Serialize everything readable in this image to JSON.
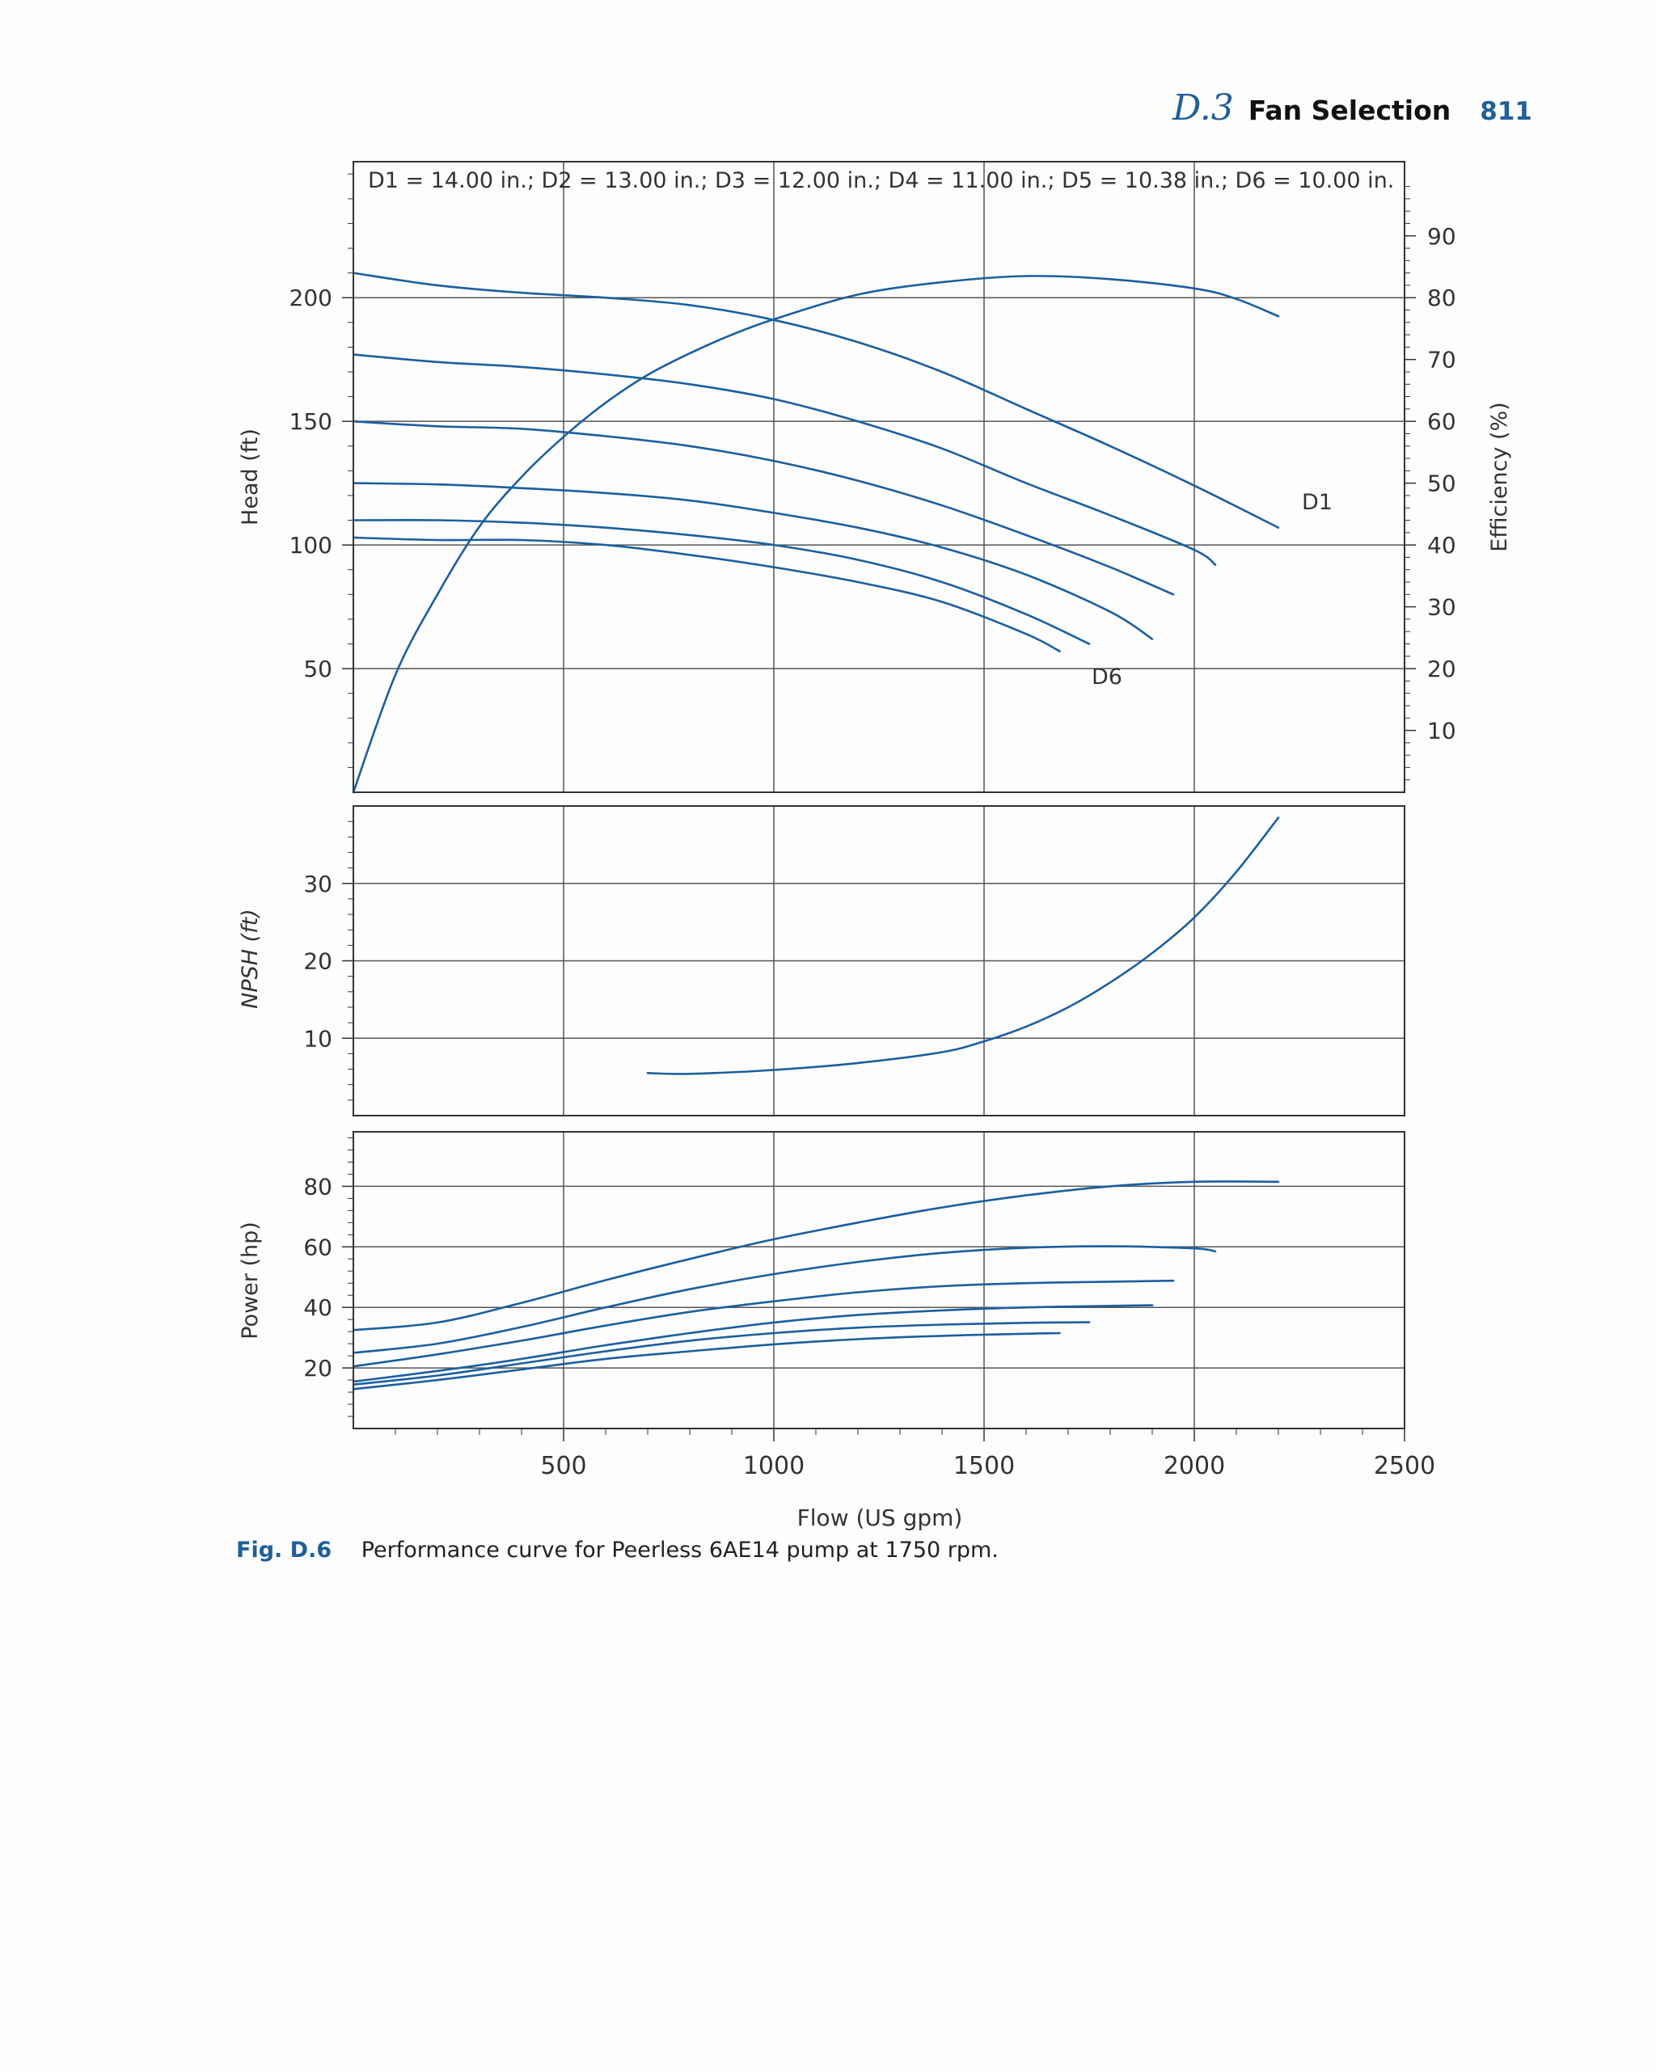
{
  "header": {
    "section_number": "D.3",
    "section_title": "Fan Selection",
    "page_number": "811"
  },
  "caption": {
    "label": "Fig. D.6",
    "text": "Performance curve for Peerless 6AE14 pump at 1750 rpm."
  },
  "colors": {
    "curve": "#1b5fa0",
    "grid": "#555555",
    "frame": "#333333"
  },
  "chart_data": [
    {
      "type": "line",
      "name": "head-efficiency",
      "title": "D1 = 14.00 in.; D2 = 13.00 in.; D3 = 12.00 in.; D4 = 11.00 in.; D5 = 10.38 in.; D6 = 10.00 in.",
      "xlabel": "Flow (US gpm)",
      "ylabel": "Head (ft)",
      "y2label": "Efficiency (%)",
      "xlim": [
        0,
        2500
      ],
      "ylim": [
        0,
        255
      ],
      "y2lim": [
        0,
        102
      ],
      "xticks": [
        500,
        1000,
        1500,
        2000
      ],
      "yticks": [
        50,
        100,
        150,
        200
      ],
      "y2ticks": [
        10,
        20,
        30,
        40,
        50,
        60,
        70,
        80,
        90
      ],
      "grid": true,
      "annotations": [
        {
          "text": "D1",
          "x": 2260,
          "y": 118
        },
        {
          "text": "D6",
          "x": 1750,
          "y": 50
        }
      ],
      "series": [
        {
          "name": "D1",
          "x": [
            0,
            200,
            400,
            600,
            800,
            1000,
            1200,
            1400,
            1600,
            1800,
            2000,
            2200
          ],
          "y": [
            210,
            205,
            202,
            200,
            197,
            191,
            182,
            170,
            155,
            140,
            124,
            107
          ]
        },
        {
          "name": "D2",
          "x": [
            0,
            200,
            400,
            600,
            800,
            1000,
            1200,
            1400,
            1600,
            1800,
            2000,
            2050
          ],
          "y": [
            177,
            174,
            172,
            169,
            165,
            159,
            150,
            139,
            125,
            112,
            98,
            92
          ]
        },
        {
          "name": "D3",
          "x": [
            0,
            200,
            400,
            600,
            800,
            1000,
            1200,
            1400,
            1600,
            1800,
            1950
          ],
          "y": [
            150,
            148,
            147,
            144,
            140,
            134,
            126,
            116,
            104,
            91,
            80
          ]
        },
        {
          "name": "D4",
          "x": [
            0,
            200,
            400,
            600,
            800,
            1000,
            1200,
            1400,
            1600,
            1800,
            1900
          ],
          "y": [
            125,
            124.5,
            123,
            121,
            118,
            113,
            107,
            99,
            88,
            73,
            62
          ]
        },
        {
          "name": "D5",
          "x": [
            0,
            200,
            400,
            600,
            800,
            1000,
            1200,
            1400,
            1600,
            1750
          ],
          "y": [
            110,
            110,
            109,
            107,
            104,
            100,
            94,
            85,
            72,
            60
          ]
        },
        {
          "name": "D6",
          "x": [
            0,
            200,
            400,
            600,
            800,
            1000,
            1200,
            1400,
            1600,
            1680
          ],
          "y": [
            103,
            102,
            102,
            100,
            96,
            91,
            85,
            77,
            64,
            57
          ]
        },
        {
          "name": "Efficiency",
          "axis": "y2",
          "x": [
            0,
            100,
            200,
            300,
            400,
            500,
            600,
            700,
            800,
            900,
            1000,
            1200,
            1400,
            1600,
            1800,
            2000,
            2100,
            2200
          ],
          "y": [
            0,
            19,
            32,
            43,
            51,
            57.5,
            63,
            67.5,
            71,
            74,
            76.5,
            80.5,
            82.5,
            83.5,
            83,
            81.5,
            79.8,
            77
          ]
        }
      ]
    },
    {
      "type": "line",
      "name": "npsh",
      "ylabel": "NPSH (ft)",
      "xlim": [
        0,
        2500
      ],
      "ylim": [
        0,
        40
      ],
      "yticks": [
        10,
        20,
        30
      ],
      "grid": true,
      "series": [
        {
          "name": "NPSH",
          "x": [
            700,
            800,
            1000,
            1200,
            1400,
            1500,
            1600,
            1700,
            1800,
            1900,
            2000,
            2100,
            2200
          ],
          "y": [
            5.5,
            5.4,
            5.9,
            6.8,
            8.2,
            9.6,
            11.5,
            14,
            17.2,
            21,
            25.6,
            31.5,
            38.5
          ]
        }
      ]
    },
    {
      "type": "line",
      "name": "power",
      "xlabel": "Flow (US gpm)",
      "ylabel": "Power (hp)",
      "xlim": [
        0,
        2500
      ],
      "ylim": [
        0,
        98
      ],
      "xticks": [
        500,
        1000,
        1500,
        2000,
        2500
      ],
      "yticks": [
        20,
        40,
        60,
        80
      ],
      "grid": true,
      "series": [
        {
          "name": "D1",
          "x": [
            0,
            200,
            400,
            600,
            800,
            1000,
            1200,
            1400,
            1600,
            1800,
            2000,
            2200
          ],
          "y": [
            32.5,
            35,
            41.5,
            49,
            56,
            62.5,
            68,
            73,
            77,
            80,
            81.5,
            81.5
          ]
        },
        {
          "name": "D2",
          "x": [
            0,
            200,
            400,
            600,
            800,
            1000,
            1200,
            1400,
            1600,
            1800,
            2000,
            2050
          ],
          "y": [
            25,
            28,
            33.5,
            40,
            46,
            51,
            55,
            58,
            59.7,
            60.2,
            59.5,
            58.5
          ]
        },
        {
          "name": "D3",
          "x": [
            0,
            200,
            400,
            600,
            800,
            1000,
            1200,
            1400,
            1600,
            1800,
            1950
          ],
          "y": [
            20.5,
            24.5,
            29,
            34,
            38.5,
            42,
            45,
            47,
            48,
            48.5,
            48.8
          ]
        },
        {
          "name": "D4",
          "x": [
            0,
            200,
            400,
            600,
            800,
            1000,
            1200,
            1400,
            1600,
            1800,
            1900
          ],
          "y": [
            15.5,
            19,
            23,
            27.5,
            31.5,
            35,
            37.5,
            39,
            40,
            40.5,
            40.7
          ]
        },
        {
          "name": "D5",
          "x": [
            0,
            200,
            400,
            600,
            800,
            1000,
            1200,
            1400,
            1600,
            1750
          ],
          "y": [
            14.5,
            17.5,
            21.5,
            25.5,
            29,
            31.5,
            33.3,
            34.3,
            34.9,
            35.1
          ]
        },
        {
          "name": "D6",
          "x": [
            0,
            200,
            400,
            600,
            800,
            1000,
            1200,
            1400,
            1600,
            1680
          ],
          "y": [
            13,
            16,
            19.5,
            23,
            25.5,
            27.8,
            29.5,
            30.6,
            31.3,
            31.5
          ]
        }
      ]
    }
  ]
}
